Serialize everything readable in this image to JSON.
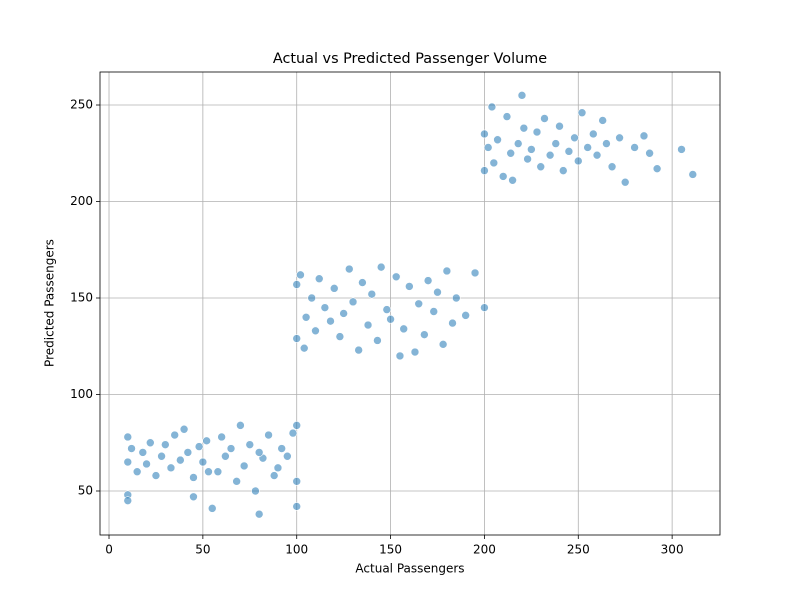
{
  "chart_data": {
    "type": "scatter",
    "title": "Actual vs Predicted Passenger Volume",
    "x_label": "Actual Passengers",
    "y_label": "Predicted Passengers",
    "color": "#1f77b4",
    "grid": true,
    "xlim": [
      -4.8,
      325.5
    ],
    "ylim": [
      27.2,
      267.1
    ],
    "xticks": [
      0,
      50,
      100,
      150,
      200,
      250,
      300
    ],
    "yticks": [
      50,
      100,
      150,
      200,
      250
    ],
    "x": [
      10,
      10,
      10,
      10,
      12,
      15,
      18,
      20,
      22,
      25,
      28,
      30,
      33,
      35,
      38,
      40,
      42,
      45,
      48,
      50,
      52,
      55,
      58,
      60,
      62,
      65,
      68,
      70,
      72,
      75,
      78,
      80,
      82,
      85,
      88,
      90,
      92,
      95,
      98,
      100,
      100,
      100,
      80,
      45,
      53,
      100,
      100,
      102,
      104,
      105,
      108,
      110,
      112,
      115,
      118,
      120,
      123,
      125,
      128,
      130,
      133,
      135,
      138,
      140,
      143,
      145,
      148,
      150,
      153,
      155,
      157,
      160,
      163,
      165,
      168,
      170,
      173,
      175,
      178,
      180,
      183,
      185,
      190,
      195,
      200,
      200,
      200,
      202,
      204,
      205,
      207,
      210,
      212,
      214,
      215,
      218,
      220,
      221,
      223,
      225,
      228,
      230,
      232,
      235,
      238,
      240,
      242,
      245,
      248,
      250,
      252,
      255,
      258,
      260,
      263,
      265,
      268,
      272,
      275,
      280,
      285,
      288,
      292,
      305,
      311
    ],
    "values": [
      78,
      65,
      48,
      45,
      72,
      60,
      70,
      64,
      75,
      58,
      68,
      74,
      62,
      79,
      66,
      82,
      70,
      57,
      73,
      65,
      76,
      41,
      60,
      78,
      68,
      72,
      55,
      84,
      63,
      74,
      50,
      38,
      67,
      79,
      58,
      62,
      72,
      68,
      80,
      84,
      55,
      42,
      70,
      47,
      60,
      157,
      129,
      162,
      124,
      140,
      150,
      133,
      160,
      145,
      138,
      155,
      130,
      142,
      165,
      148,
      123,
      158,
      136,
      152,
      128,
      166,
      144,
      139,
      161,
      120,
      134,
      156,
      122,
      147,
      131,
      159,
      143,
      153,
      126,
      164,
      137,
      150,
      141,
      163,
      145,
      235,
      216,
      228,
      249,
      220,
      232,
      213,
      244,
      225,
      211,
      230,
      255,
      238,
      222,
      227,
      236,
      218,
      243,
      224,
      230,
      239,
      216,
      226,
      233,
      221,
      246,
      228,
      235,
      224,
      242,
      230,
      218,
      233,
      210,
      228,
      234,
      225,
      217,
      227,
      214
    ]
  }
}
